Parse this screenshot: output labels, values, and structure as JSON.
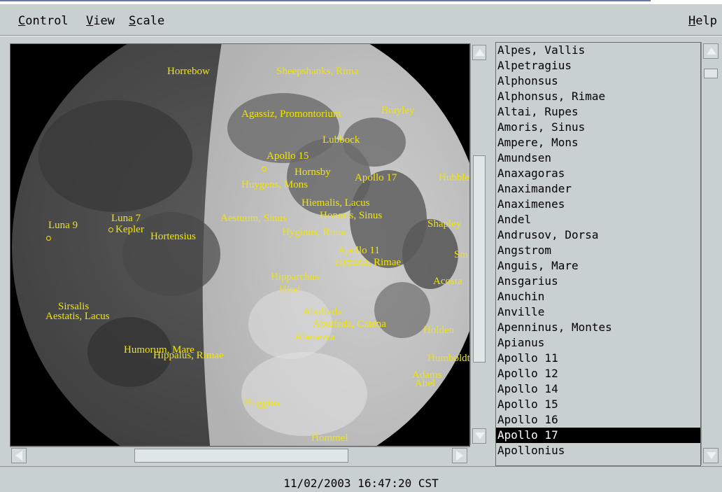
{
  "menu": {
    "control": "Control",
    "view": "View",
    "scale": "Scale",
    "help": "Help"
  },
  "map_labels": [
    {
      "text": "Horrebow"
    },
    {
      "text": "Sheepshanks, Rima"
    },
    {
      "text": "Agassiz, Promontorium"
    },
    {
      "text": "Brayley"
    },
    {
      "text": "Lubbock"
    },
    {
      "text": "Apollo 15"
    },
    {
      "text": "Hornsby"
    },
    {
      "text": "Huygens, Mons"
    },
    {
      "text": "Apollo 17"
    },
    {
      "text": "Hubble"
    },
    {
      "text": "Hiemalis, Lacus"
    },
    {
      "text": "Honoris, Sinus"
    },
    {
      "text": "Luna 7"
    },
    {
      "text": "Luna 9"
    },
    {
      "text": "Kepler"
    },
    {
      "text": "Hortensius"
    },
    {
      "text": "Aestuum, Sinus"
    },
    {
      "text": "Hyginus, Rima"
    },
    {
      "text": "Shapley"
    },
    {
      "text": "Apollo 11"
    },
    {
      "text": "Hypatia, Rimae"
    },
    {
      "text": "Hipparchus"
    },
    {
      "text": "Hind"
    },
    {
      "text": "Acosta"
    },
    {
      "text": "Sirsalis"
    },
    {
      "text": "Aestatis, Lacus"
    },
    {
      "text": "Abulfeda"
    },
    {
      "text": "Abulfeda, Catena"
    },
    {
      "text": "Abenezra"
    },
    {
      "text": "Holden"
    },
    {
      "text": "Humorum, Mare"
    },
    {
      "text": "Hippalus, Rimae"
    },
    {
      "text": "Humboldt"
    },
    {
      "text": "Adams"
    },
    {
      "text": "Abel"
    },
    {
      "text": "Huggins"
    },
    {
      "text": "Hommel"
    },
    {
      "text": "Sm"
    }
  ],
  "feature_list": {
    "items": [
      "Alpes, Vallis",
      "Alpetragius",
      "Alphonsus",
      "Alphonsus, Rimae",
      "Altai, Rupes",
      "Amoris, Sinus",
      "Ampere, Mons",
      "Amundsen",
      "Anaxagoras",
      "Anaximander",
      "Anaximenes",
      "Andel",
      "Andrusov, Dorsa",
      "Angstrom",
      "Anguis, Mare",
      "Ansgarius",
      "Anuchin",
      "Anville",
      "Apenninus, Montes",
      "Apianus",
      "Apollo 11",
      "Apollo 12",
      "Apollo 14",
      "Apollo 15",
      "Apollo 16",
      "Apollo 17",
      "Apollonius"
    ],
    "selected": "Apollo 17"
  },
  "status": {
    "datetime": "11/02/2003 16:47:20 CST"
  },
  "colors": {
    "label": "#f2e600",
    "background": "#c8d0d0",
    "selection": "#000000"
  }
}
